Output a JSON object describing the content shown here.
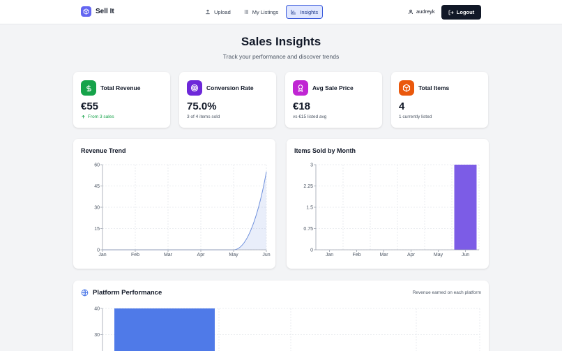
{
  "app": {
    "name": "Sell It"
  },
  "nav": {
    "upload": "Upload",
    "listings": "My Listings",
    "insights": "Insights"
  },
  "user": {
    "name": "audreyk",
    "logout": "Logout"
  },
  "page": {
    "title": "Sales Insights",
    "subtitle": "Track your performance and discover trends"
  },
  "stats": [
    {
      "label": "Total Revenue",
      "value": "€55",
      "note": "From 3 sales",
      "color": "#16a34a",
      "icon": "dollar-icon"
    },
    {
      "label": "Conversion Rate",
      "value": "75.0%",
      "note": "3 of 4 items sold",
      "color": "#6d28d9",
      "icon": "target-icon"
    },
    {
      "label": "Avg Sale Price",
      "value": "€18",
      "note": "vs €15 listed avg",
      "color": "#c026d3",
      "icon": "award-icon"
    },
    {
      "label": "Total Items",
      "value": "4",
      "note": "1 currently listed",
      "color": "#ea580c",
      "icon": "package-icon"
    }
  ],
  "charts": {
    "revenue_title": "Revenue Trend",
    "items_title": "Items Sold by Month",
    "platform_title": "Platform Performance",
    "platform_note": "Revenue earned on each platform"
  },
  "chart_data": [
    {
      "type": "area",
      "title": "Revenue Trend",
      "categories": [
        "Jan",
        "Feb",
        "Mar",
        "Apr",
        "May",
        "Jun"
      ],
      "values": [
        0,
        0,
        0,
        0,
        0,
        55
      ],
      "yticks": [
        "0",
        "15",
        "30",
        "45",
        "60"
      ],
      "ylim": [
        0,
        60
      ],
      "color": "#6d8fdc",
      "grid": true
    },
    {
      "type": "bar",
      "title": "Items Sold by Month",
      "categories": [
        "Jan",
        "Feb",
        "Mar",
        "Apr",
        "May",
        "Jun"
      ],
      "values": [
        0,
        0,
        0,
        0,
        0,
        3
      ],
      "yticks": [
        "0",
        "0.75",
        "1.5",
        "2.25",
        "3"
      ],
      "ylim": [
        0,
        3
      ],
      "color": "#7c5ce6",
      "grid": true
    },
    {
      "type": "bar",
      "title": "Platform Performance",
      "values": [
        40
      ],
      "yticks": [
        "20",
        "30",
        "40"
      ],
      "ylim": [
        0,
        40
      ],
      "color": "#4f7ae8",
      "grid": true
    }
  ]
}
